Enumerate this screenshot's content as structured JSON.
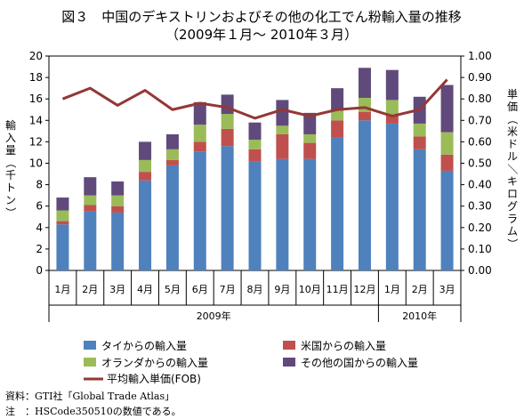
{
  "chart_data": {
    "type": "bar",
    "title": "図３　中国のデキストリンおよびその他の化工でん粉輸入量の推移",
    "subtitle": "（2009年１月～ 2010年３月）",
    "categories": [
      "1月",
      "2月",
      "3月",
      "4月",
      "5月",
      "6月",
      "7月",
      "8月",
      "9月",
      "10月",
      "11月",
      "12月",
      "1月",
      "2月",
      "3月"
    ],
    "year_groups": [
      {
        "label": "2009年",
        "count": 12
      },
      {
        "label": "2010年",
        "count": 3
      }
    ],
    "ylabel_left": "輸入量（千トン）",
    "ylabel_right": "単価（米ドル／キログラム）",
    "ylim_left": [
      0,
      20
    ],
    "yticks_left": [
      "0",
      "2",
      "4",
      "6",
      "8",
      "10",
      "12",
      "14",
      "16",
      "18",
      "20"
    ],
    "ylim_right": [
      0,
      1.0
    ],
    "yticks_right": [
      "0.00",
      "0.10",
      "0.20",
      "0.30",
      "0.40",
      "0.50",
      "0.60",
      "0.70",
      "0.80",
      "0.90",
      "1.00"
    ],
    "stacked": true,
    "series": [
      {
        "name": "タイからの輸入量",
        "color": "#4f81bd",
        "values": [
          4.3,
          5.5,
          5.4,
          8.4,
          9.8,
          11.1,
          11.6,
          10.2,
          10.4,
          10.4,
          12.4,
          14.0,
          13.7,
          11.3,
          9.3
        ]
      },
      {
        "name": "米国からの輸入量",
        "color": "#c0504d",
        "values": [
          0.3,
          0.6,
          0.6,
          0.8,
          0.5,
          0.9,
          1.6,
          1.1,
          2.3,
          1.5,
          1.6,
          0.8,
          0.8,
          1.2,
          1.5
        ]
      },
      {
        "name": "オランダからの輸入量",
        "color": "#9bbb59",
        "values": [
          1.0,
          0.9,
          1.0,
          1.1,
          1.0,
          1.6,
          1.4,
          0.9,
          0.8,
          0.8,
          0.9,
          1.3,
          1.4,
          1.2,
          2.1
        ]
      },
      {
        "name": "その他の国からの輸入量",
        "color": "#604a7b",
        "values": [
          1.2,
          1.7,
          1.3,
          1.7,
          1.4,
          2.1,
          1.8,
          1.6,
          2.4,
          2.0,
          2.1,
          2.8,
          2.8,
          2.5,
          4.4
        ]
      }
    ],
    "line_series": {
      "name": "平均輸入単価(FOB)",
      "color": "#953735",
      "axis": "right",
      "values": [
        0.8,
        0.85,
        0.77,
        0.84,
        0.75,
        0.78,
        0.76,
        0.71,
        0.75,
        0.72,
        0.75,
        0.76,
        0.72,
        0.75,
        0.89
      ]
    },
    "grid": false,
    "legend_position": "bottom"
  },
  "notes": [
    {
      "label": "資料：",
      "text": "GTI社「Global Trade Atlas」"
    },
    {
      "label": "注　：",
      "text": "HSCode350510の数値である。"
    }
  ]
}
